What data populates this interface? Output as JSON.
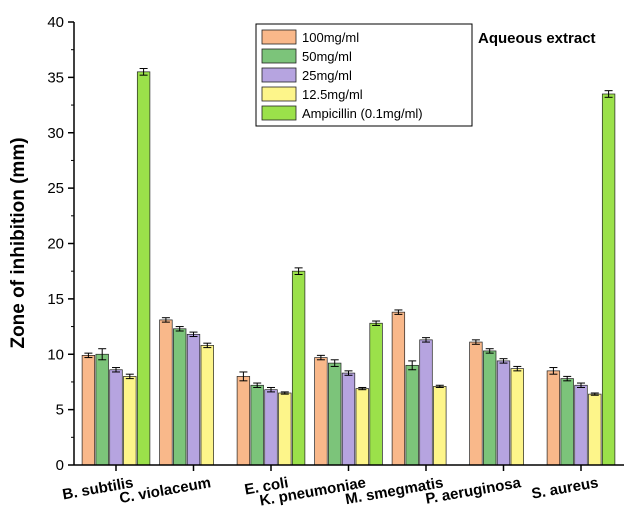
{
  "chart_data": {
    "type": "bar",
    "title": "",
    "annotation": "Aqueous extract",
    "xlabel": "",
    "ylabel": "Zone of inhibition (mm)",
    "ylim": [
      0,
      40
    ],
    "yticks": [
      "0",
      "5",
      "10",
      "15",
      "20",
      "25",
      "30",
      "35",
      "40"
    ],
    "grid": false,
    "legend_position": "top-center",
    "categories": [
      "B. subtilis",
      "C. violaceum",
      "E. coli",
      "K. pneumoniae",
      "M. smegmatis",
      "P. aeruginosa",
      "S. aureus"
    ],
    "series": [
      {
        "name": "100mg/ml",
        "color": "#f9b88a",
        "values": [
          9.9,
          13.1,
          8.0,
          9.7,
          13.8,
          11.1,
          8.5
        ]
      },
      {
        "name": "50mg/ml",
        "color": "#7cc47a",
        "values": [
          10.0,
          12.3,
          7.2,
          9.2,
          9.0,
          10.3,
          7.8
        ]
      },
      {
        "name": "25mg/ml",
        "color": "#b6a4e0",
        "values": [
          8.6,
          11.8,
          6.8,
          8.3,
          11.3,
          9.4,
          7.2
        ]
      },
      {
        "name": "12.5mg/ml",
        "color": "#fdf58a",
        "values": [
          8.0,
          10.8,
          6.5,
          6.9,
          7.1,
          8.7,
          6.4
        ]
      },
      {
        "name": "Ampicillin (0.1mg/ml)",
        "color": "#9be14a",
        "values": [
          35.5,
          null,
          17.5,
          12.8,
          null,
          null,
          33.5
        ]
      }
    ],
    "errors": [
      [
        0.2,
        0.2,
        0.4,
        0.2,
        0.2,
        0.2,
        0.3
      ],
      [
        0.5,
        0.2,
        0.2,
        0.3,
        0.4,
        0.2,
        0.2
      ],
      [
        0.2,
        0.2,
        0.2,
        0.2,
        0.2,
        0.2,
        0.2
      ],
      [
        0.2,
        0.2,
        0.1,
        0.1,
        0.1,
        0.2,
        0.1
      ],
      [
        0.3,
        null,
        0.3,
        0.2,
        null,
        null,
        0.3
      ]
    ]
  }
}
